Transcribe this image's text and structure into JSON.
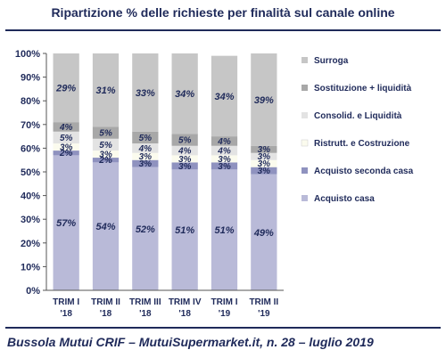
{
  "title": "Ripartizione % delle richieste per finalità sul canale online",
  "footer": "Bussola Mutui CRIF – MutuiSupermarket.it, n. 28 – luglio 2019",
  "chart_data": {
    "type": "bar",
    "stacked": true,
    "percent": true,
    "categories": [
      [
        "TRIM I",
        "'18"
      ],
      [
        "TRIM II",
        "'18"
      ],
      [
        "TRIM III",
        "'18"
      ],
      [
        "TRIM IV",
        "'18"
      ],
      [
        "TRIM I",
        "'19"
      ],
      [
        "TRIM II",
        "'19"
      ]
    ],
    "ylim": [
      0,
      100
    ],
    "yticks": [
      "0%",
      "10%",
      "20%",
      "30%",
      "40%",
      "50%",
      "60%",
      "70%",
      "80%",
      "90%",
      "100%"
    ],
    "legend_position": "right",
    "series": [
      {
        "name": "Acquisto casa",
        "color": "#b9bad8",
        "values": [
          57,
          54,
          52,
          51,
          51,
          49
        ]
      },
      {
        "name": "Acquisto seconda casa",
        "color": "#8f92bf",
        "values": [
          2,
          2,
          3,
          3,
          3,
          3
        ]
      },
      {
        "name": "Ristrutt. e Costruzione",
        "color": "#fbfbee",
        "values": [
          3,
          3,
          3,
          3,
          3,
          3
        ]
      },
      {
        "name": "Consolid. e Liquidità",
        "color": "#e3e3e3",
        "values": [
          5,
          5,
          4,
          4,
          4,
          3
        ]
      },
      {
        "name": "Sostituzione + liquidità",
        "color": "#a8a8a8",
        "values": [
          4,
          5,
          5,
          5,
          4,
          3
        ]
      },
      {
        "name": "Surroga",
        "color": "#c6c6c6",
        "values": [
          29,
          31,
          33,
          34,
          34,
          39
        ]
      }
    ]
  }
}
